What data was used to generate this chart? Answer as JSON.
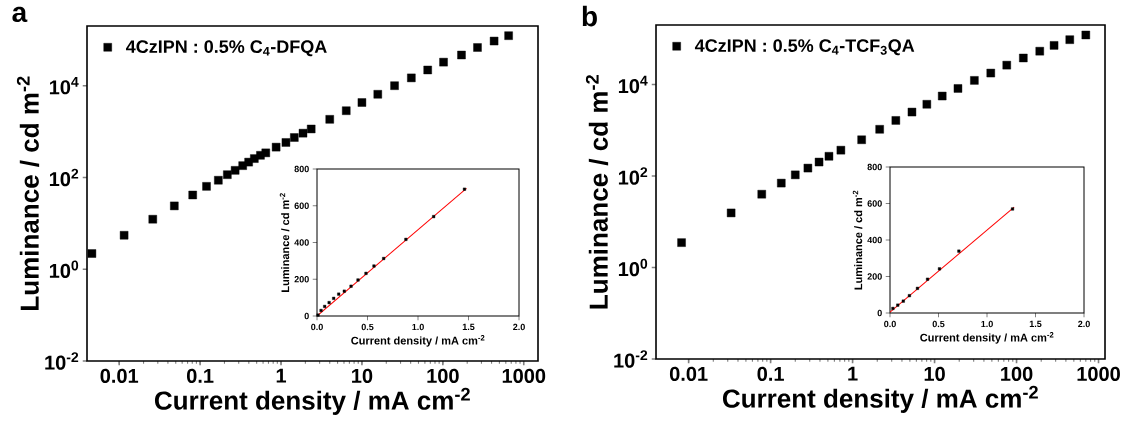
{
  "chart_data": [
    {
      "type": "scatter",
      "title": "a",
      "xlabel": "Current density / mA cm$^{-2}$",
      "ylabel": "Luminance / cd m$^{-2}$",
      "log": "xy",
      "marker": "square",
      "legend": "top left",
      "xlim": [
        0.004,
        1500
      ],
      "ylim": [
        0.01,
        200000
      ],
      "xticks": [
        0.01,
        0.1,
        1,
        10,
        100,
        1000
      ],
      "yticks": [
        {
          "value": 0.01,
          "label": "10$^{-2}$"
        },
        {
          "value": 1,
          "label": "10$^{0}$"
        },
        {
          "value": 100,
          "label": "10$^{2}$"
        },
        {
          "value": 10000,
          "label": "10$^{4}$"
        }
      ],
      "series": [
        {
          "name": "4CzIPN : 0.5% C$_{4}$-DFQA",
          "color": "#000000",
          "x": [
            0.0046,
            0.0115,
            0.026,
            0.048,
            0.081,
            0.12,
            0.168,
            0.217,
            0.271,
            0.336,
            0.398,
            0.468,
            0.557,
            0.648,
            0.87,
            1.15,
            1.46,
            1.87,
            2.36,
            4.0,
            6.4,
            10,
            15.7,
            25.3,
            40.8,
            65,
            102,
            170,
            268,
            430,
            650
          ],
          "values": [
            2.2,
            5.5,
            12.3,
            24,
            41.5,
            64,
            87,
            115,
            143,
            181,
            216,
            258,
            304,
            344,
            458,
            579,
            743,
            923,
            1140,
            1850,
            2850,
            4300,
            6500,
            10000,
            14800,
            22000,
            32600,
            46600,
            68000,
            94000,
            123000
          ]
        }
      ]
    },
    {
      "type": "scatter",
      "xlabel": "Current density / mA cm$^{-2}$",
      "ylabel": "Luminance / cd m$^{-2}$",
      "xlim": [
        0,
        2
      ],
      "ylim": [
        0,
        800
      ],
      "xticks": [
        {
          "value": 0,
          "label": "0.0"
        },
        0.5,
        {
          "value": 1,
          "label": "1.0"
        },
        1.5,
        {
          "value": 2,
          "label": "2.0"
        }
      ],
      "yticks": [
        0,
        200,
        400,
        600,
        800
      ],
      "series": [
        {
          "color": "#000000",
          "marker": "square",
          "x": [
            0.01,
            0.04,
            0.076,
            0.12,
            0.165,
            0.215,
            0.27,
            0.337,
            0.406,
            0.485,
            0.564,
            0.66,
            0.88,
            1.155,
            1.46
          ],
          "values": [
            5,
            30,
            52,
            73,
            96,
            119,
            135,
            162,
            196,
            232,
            272,
            313,
            417,
            541,
            690
          ]
        },
        {
          "type": "line",
          "marker": "none",
          "color": "#ff0000",
          "x": [
            0,
            1.48
          ],
          "values": [
            0,
            695
          ]
        }
      ]
    },
    {
      "type": "scatter",
      "title": "b",
      "xlabel": "Current density / mA cm$^{-2}$",
      "ylabel": "Luminance / cd m$^{-2}$",
      "log": "xy",
      "marker": "square",
      "legend": "top left",
      "xlim": [
        0.004,
        1200
      ],
      "ylim": [
        0.01,
        200000
      ],
      "xticks": [
        0.01,
        0.1,
        1,
        10,
        100,
        1000
      ],
      "yticks": [
        {
          "value": 0.01,
          "label": "10$^{-2}$"
        },
        {
          "value": 1,
          "label": "10$^{0}$"
        },
        {
          "value": 100,
          "label": "10$^{2}$"
        },
        {
          "value": 10000,
          "label": "10$^{4}$"
        }
      ],
      "series": [
        {
          "name": "4CzIPN : 0.5% C$_{4}$-TCF$_{3}$QA",
          "color": "#000000",
          "x": [
            0.0082,
            0.033,
            0.078,
            0.135,
            0.2,
            0.285,
            0.39,
            0.515,
            0.72,
            1.29,
            2.14,
            3.37,
            5.3,
            8.05,
            12.4,
            19.3,
            30.6,
            48.5,
            76,
            121,
            192,
            287,
            446,
            700
          ],
          "values": [
            3.5,
            15.6,
            40,
            70,
            106,
            149,
            202,
            270,
            367,
            620,
            1050,
            1640,
            2500,
            3700,
            5600,
            8200,
            12300,
            17800,
            26500,
            38000,
            53500,
            71600,
            95500,
            121000
          ]
        }
      ]
    },
    {
      "type": "scatter",
      "xlabel": "Current density / mA cm$^{-2}$",
      "ylabel": "Luminance / cd m$^{-2}$",
      "xlim": [
        0,
        2
      ],
      "ylim": [
        0,
        800
      ],
      "xticks": [
        {
          "value": 0,
          "label": "0.0"
        },
        0.5,
        {
          "value": 1,
          "label": "1.0"
        },
        1.5,
        {
          "value": 2,
          "label": "2.0"
        }
      ],
      "yticks": [
        0,
        200,
        400,
        600,
        800
      ],
      "series": [
        {
          "color": "#000000",
          "marker": "square",
          "x": [
            0.03,
            0.08,
            0.137,
            0.2,
            0.283,
            0.387,
            0.51,
            0.71,
            1.263
          ],
          "values": [
            25,
            43,
            65,
            95,
            135,
            185,
            242,
            339,
            570
          ]
        },
        {
          "type": "line",
          "marker": "none",
          "color": "#ff0000",
          "x": [
            0,
            1.28
          ],
          "values": [
            5,
            580
          ]
        }
      ]
    }
  ]
}
